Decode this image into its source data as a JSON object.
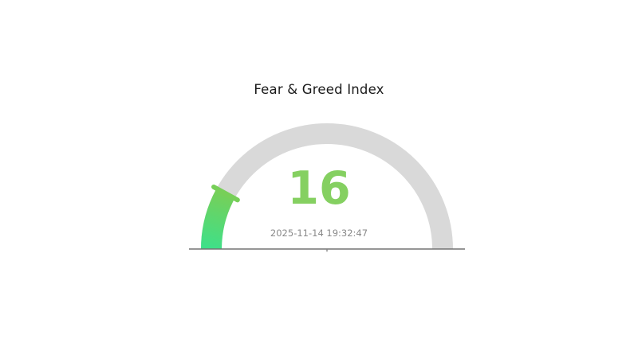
{
  "title": "Fear & Greed Index",
  "gauge": {
    "value_label": "16",
    "timestamp": "2025-11-14 19:32:47"
  },
  "colors": {
    "title": "#1a1a1a",
    "track": "#d9d9d9",
    "value_start": "#3ee089",
    "value_end": "#77cf58",
    "number": "#85d061",
    "timestamp": "#8a8a8a",
    "baseline": "#737373"
  },
  "chart_data": {
    "type": "gauge",
    "title": "Fear & Greed Index",
    "value": 16,
    "range": [
      0,
      100
    ],
    "annotation": "2025-11-14 19:32:47",
    "arc_span_degrees": 180,
    "track_color": "#d9d9d9",
    "value_arc_gradient": [
      "#3ee089",
      "#77cf58"
    ],
    "legend": "none",
    "grid": "off"
  }
}
